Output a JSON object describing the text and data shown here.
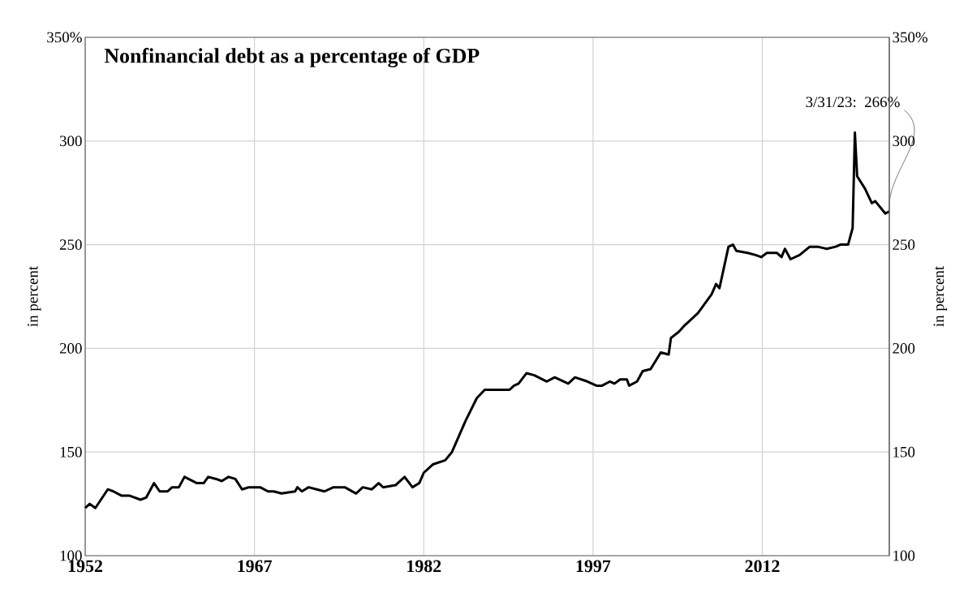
{
  "chart_data": {
    "type": "line",
    "title": "Nonfinancial debt as a percentage of GDP",
    "ylabel": "in percent",
    "y2label": "in percent",
    "x": [
      1952.0,
      1952.4,
      1952.9,
      1954.0,
      1954.5,
      1955.2,
      1955.9,
      1956.9,
      1957.4,
      1958.1,
      1958.6,
      1959.3,
      1959.7,
      1960.3,
      1960.8,
      1961.9,
      1962.5,
      1962.9,
      1963.6,
      1964.1,
      1964.7,
      1965.3,
      1965.9,
      1966.5,
      1967.5,
      1968.2,
      1968.7,
      1969.4,
      1970.6,
      1970.8,
      1971.2,
      1971.8,
      1972.5,
      1973.2,
      1974.0,
      1975.0,
      1976.0,
      1976.6,
      1977.4,
      1978.0,
      1978.4,
      1979.5,
      1980.3,
      1981.0,
      1981.6,
      1982.0,
      1982.8,
      1983.9,
      1984.5,
      1985.7,
      1986.7,
      1987.4,
      1988.2,
      1989.6,
      1990.0,
      1990.4,
      1991.1,
      1991.8,
      1992.9,
      1993.6,
      1994.8,
      1995.4,
      1996.5,
      1997.3,
      1997.8,
      1998.5,
      1998.9,
      1999.4,
      2000.0,
      2000.2,
      2000.9,
      2001.4,
      2002.1,
      2003.0,
      2003.7,
      2003.9,
      2004.6,
      2005.1,
      2006.3,
      2007.5,
      2007.9,
      2008.2,
      2009.0,
      2009.4,
      2009.7,
      2010.7,
      2011.4,
      2011.9,
      2012.4,
      2013.3,
      2013.7,
      2014.0,
      2014.5,
      2015.3,
      2016.2,
      2016.9,
      2017.7,
      2018.5,
      2018.9,
      2019.6,
      2020.0,
      2020.2,
      2020.4,
      2021.1,
      2021.7,
      2022.0,
      2022.9,
      2023.25
    ],
    "values": [
      123,
      125,
      123,
      132,
      131,
      129,
      129,
      127,
      128,
      135,
      131,
      131,
      133,
      133,
      138,
      135,
      135,
      138,
      137,
      136,
      138,
      137,
      132,
      133,
      133,
      131,
      131,
      130,
      131,
      133,
      131,
      133,
      132,
      131,
      133,
      133,
      130,
      133,
      132,
      135,
      133,
      134,
      138,
      133,
      135,
      140,
      144,
      146,
      150,
      165,
      176,
      180,
      180,
      180,
      182,
      183,
      188,
      187,
      184,
      186,
      183,
      186,
      184,
      182,
      182,
      184,
      183,
      185,
      185,
      182,
      184,
      189,
      190,
      198,
      197,
      205,
      208,
      211,
      217,
      226,
      231,
      229,
      249,
      250,
      247,
      246,
      245,
      244,
      246,
      246,
      244,
      248,
      243,
      245,
      249,
      249,
      248,
      249,
      250,
      250,
      258,
      304,
      283,
      277,
      270,
      271,
      265,
      266
    ],
    "color": "#000000",
    "line_style": "solid",
    "marker": "none",
    "grid": true,
    "xlim": [
      1952,
      2023.25
    ],
    "xticks": [
      1952,
      1967,
      1982,
      1997,
      2012
    ],
    "ylim": [
      100,
      350
    ],
    "yticks": [
      100,
      150,
      200,
      250,
      300,
      {
        "value": 350,
        "label": "350%"
      }
    ],
    "y2lim": [
      100,
      350
    ],
    "y2ticks": [
      100,
      150,
      200,
      250,
      300,
      {
        "value": 350,
        "label": "350%"
      }
    ],
    "annotations": [
      {
        "text": "3/31/23: 266%",
        "x": 2023.25,
        "y": 266
      }
    ]
  }
}
